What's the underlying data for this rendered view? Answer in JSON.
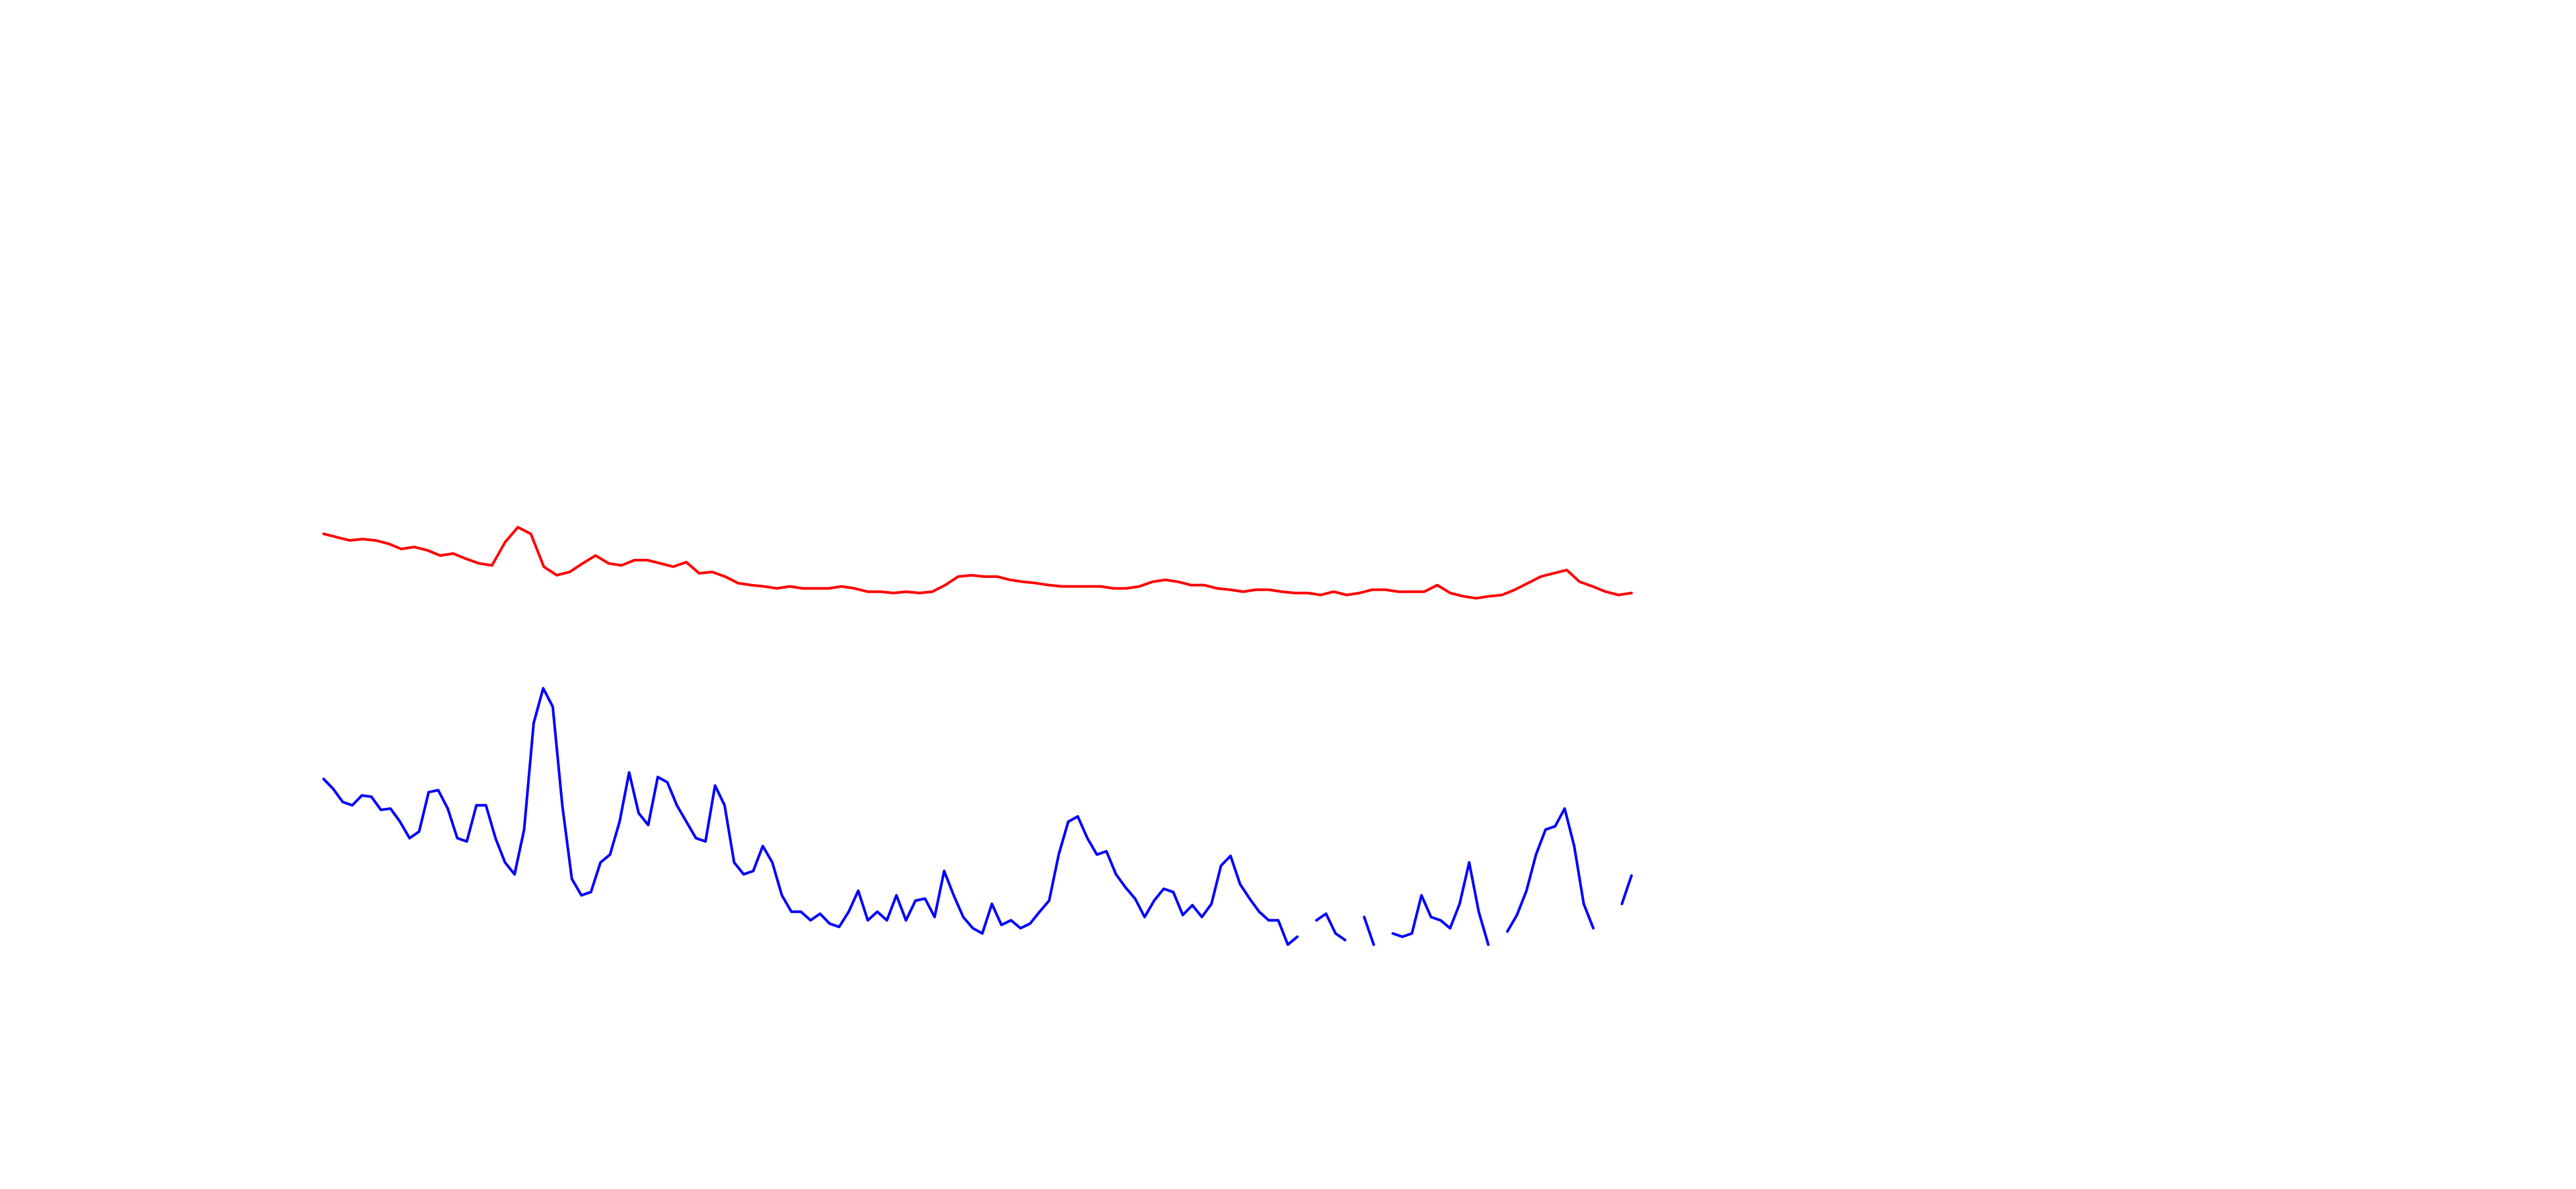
{
  "chart_data": {
    "type": "line",
    "ylim": [
      0,
      100
    ],
    "series": [
      {
        "color": "#ff0000",
        "values": [
          63.3,
          62.8,
          62.3,
          62.5,
          62.3,
          61.8,
          61,
          61.3,
          60.8,
          60,
          60.3,
          59.5,
          58.8,
          58.5,
          62,
          64.3,
          63.3,
          58.3,
          57,
          57.5,
          58.8,
          60,
          58.8,
          58.5,
          59.3,
          59.3,
          58.8,
          58.3,
          59,
          57.3,
          57.5,
          56.8,
          55.8,
          55.5,
          55.3,
          55,
          55.3,
          55,
          55,
          55,
          55.3,
          55,
          54.5,
          54.5,
          54.3,
          54.5,
          54.3,
          54.5,
          55.5,
          56.8,
          57,
          56.8,
          56.8,
          56.3,
          56,
          55.8,
          55.5,
          55.3,
          55.3,
          55.3,
          55.3,
          55,
          55,
          55.3,
          56,
          56.3,
          56,
          55.5,
          55.5,
          55,
          54.8,
          54.5,
          54.8,
          54.8,
          54.5,
          54.3,
          54.3,
          54,
          54.5,
          54,
          54.3,
          54.8,
          54.8,
          54.5,
          54.5,
          54.5,
          55.5,
          54.3,
          53.8,
          53.5,
          53.8,
          54,
          54.8,
          55.8,
          56.8,
          57.3,
          57.8,
          56,
          55.3,
          54.5,
          54,
          54.3
        ]
      },
      {
        "color": "#0000ff",
        "values": [
          26,
          24.5,
          22.5,
          22,
          23.5,
          23.3,
          21.3,
          21.5,
          19.5,
          17,
          18,
          24,
          24.3,
          21.5,
          17,
          16.5,
          22,
          22,
          17,
          13.3,
          11.5,
          18.3,
          34.5,
          39.8,
          37,
          22,
          10.8,
          8.3,
          8.8,
          13.3,
          14.5,
          19.5,
          27,
          20.8,
          19,
          26.3,
          25.5,
          22,
          19.5,
          17,
          16.5,
          25,
          22,
          13.3,
          11.5,
          12,
          15.8,
          13.3,
          8.3,
          5.8,
          5.8,
          4.5,
          5.5,
          4,
          3.5,
          5.8,
          9,
          4.5,
          5.8,
          4.5,
          8.3,
          4.5,
          7.5,
          7.8,
          5,
          12,
          8.3,
          5,
          3.3,
          2.5,
          7,
          3.8,
          4.5,
          3.3,
          4,
          5.8,
          7.5,
          14.5,
          19.5,
          20.3,
          17,
          14.5,
          15,
          11.5,
          9.5,
          7.8,
          5,
          7.5,
          9.3,
          8.8,
          5.3,
          6.8,
          5,
          7,
          12.8,
          14.3,
          10,
          7.8,
          5.8,
          4.5,
          4.5,
          0.8,
          2,
          null,
          4.5,
          5.5,
          2.5,
          1.5,
          null,
          5,
          0.8,
          null,
          2.5,
          2,
          2.5,
          8.3,
          5,
          4.5,
          3.3,
          7,
          13.3,
          5.8,
          0.8,
          null,
          2.8,
          5.3,
          9,
          14.5,
          18.3,
          18.8,
          21.5,
          15.8,
          7,
          3.3,
          null,
          null,
          7,
          11.3
        ]
      }
    ]
  }
}
